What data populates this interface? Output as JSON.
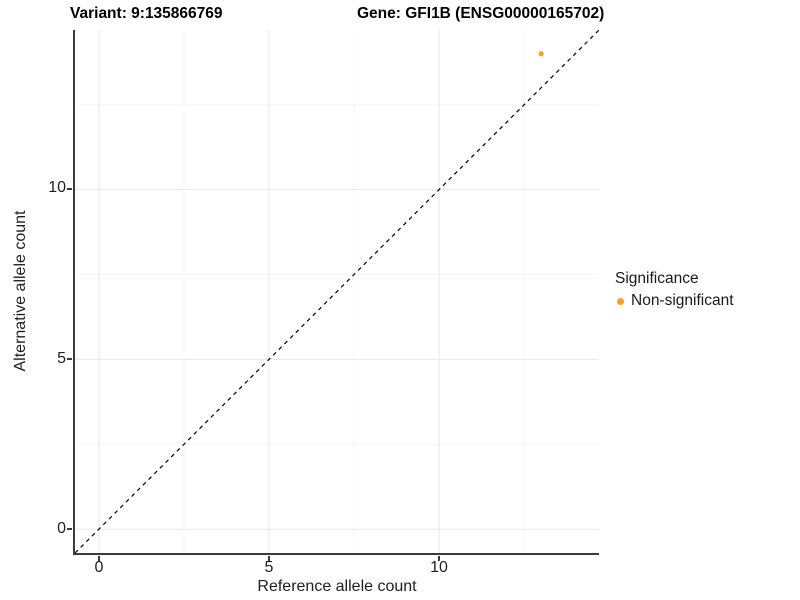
{
  "titles": {
    "variant": "Variant: 9:135866769",
    "gene": "Gene: GFI1B (ENSG00000165702)"
  },
  "axes": {
    "x": {
      "title": "Reference allele count",
      "tick_labels": [
        "0",
        "5",
        "10"
      ]
    },
    "y": {
      "title": "Alternative allele count",
      "tick_labels": [
        "0",
        "5",
        "10"
      ]
    }
  },
  "legend": {
    "title": "Significance",
    "items": [
      {
        "label": "Non-significant",
        "color": "#F8A02C"
      }
    ]
  },
  "colors": {
    "point": "#F8A02C",
    "axis": "#3C3C3C",
    "grid_major": "#E8E8E8",
    "grid_minor": "#F5F5F5",
    "reference_line": "#000000"
  },
  "chart_data": {
    "type": "scatter",
    "title": "Variant: 9:135866769 | Gene: GFI1B (ENSG00000165702)",
    "xlabel": "Reference allele count",
    "ylabel": "Alternative allele count",
    "xlim": [
      -0.7,
      14.7
    ],
    "ylim": [
      -0.7,
      14.7
    ],
    "x_ticks": [
      0,
      5,
      10
    ],
    "y_ticks": [
      0,
      5,
      10
    ],
    "minor_ticks": [
      2.5,
      7.5,
      12.5
    ],
    "grid": true,
    "legend_position": "right",
    "reference_line": {
      "style": "dashed",
      "equation": "y = x",
      "slope": 1,
      "intercept": 0
    },
    "series": [
      {
        "name": "Non-significant",
        "color": "#F8A02C",
        "points": [
          {
            "x": 13,
            "y": 14
          }
        ]
      }
    ]
  }
}
